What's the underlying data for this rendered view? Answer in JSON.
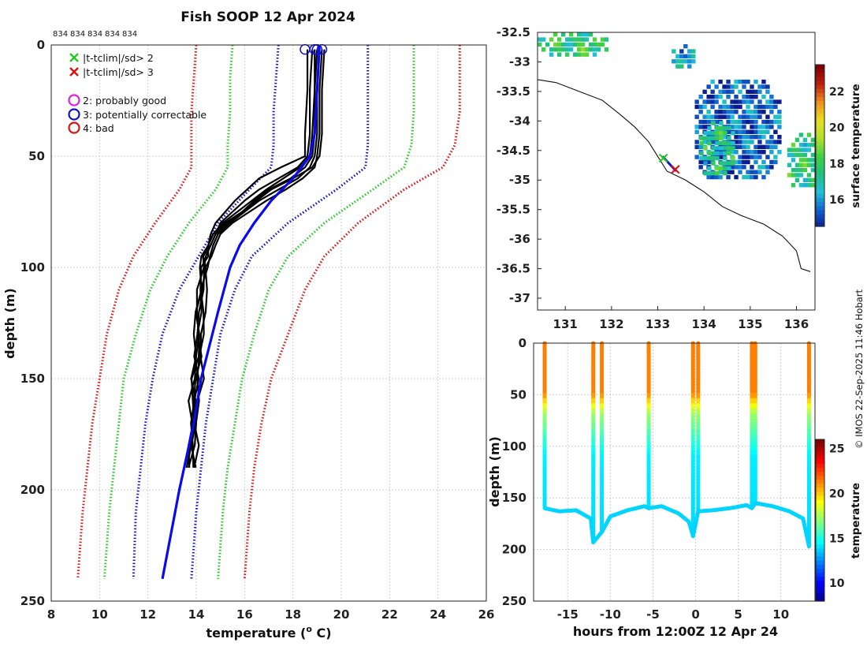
{
  "title": "Fish SOOP 12 Apr 2024",
  "profile_count_labels": [
    "834",
    "834",
    "834",
    "834",
    "834"
  ],
  "side_credit": "© IMOS 22-Sep-2025 11:46 Hobart",
  "chart_data": [
    {
      "type": "line",
      "name": "temperature-depth-profiles",
      "xlabel": "temperature (",
      "xlabel_sup": "o",
      "xlabel_end": " C)",
      "ylabel": "depth (m)",
      "xlim": [
        8,
        26
      ],
      "ylim": [
        250,
        0
      ],
      "xticks": [
        8,
        10,
        12,
        14,
        16,
        18,
        20,
        22,
        24,
        26
      ],
      "yticks": [
        0,
        50,
        100,
        150,
        200,
        250
      ],
      "legend": {
        "flags": [
          {
            "label": "|t-tclim|/sd> 2",
            "color": "#22cc22",
            "marker": "x"
          },
          {
            "label": "|t-tclim|/sd> 3",
            "color": "#dd1111",
            "marker": "x"
          }
        ],
        "qc": [
          {
            "label": "2: probably good",
            "color": "#dd22dd",
            "marker": "o"
          },
          {
            "label": "3: potentially correctable",
            "color": "#1111cc",
            "marker": "o"
          },
          {
            "label": "4: bad",
            "color": "#dd1111",
            "marker": "o"
          }
        ]
      },
      "climatology_depths": [
        0,
        15,
        30,
        45,
        55,
        65,
        80,
        95,
        110,
        130,
        150,
        170,
        190,
        210,
        240
      ],
      "climatology_series": [
        {
          "name": "clim -3sd",
          "color": "#dd1111",
          "style": "dotted",
          "values": [
            14.0,
            13.9,
            13.8,
            13.8,
            13.8,
            13.3,
            12.3,
            11.4,
            10.8,
            10.3,
            10.0,
            9.7,
            9.5,
            9.3,
            9.1
          ]
        },
        {
          "name": "clim -2sd",
          "color": "#22cc22",
          "style": "dotted",
          "values": [
            15.5,
            15.4,
            15.4,
            15.3,
            15.3,
            14.8,
            13.7,
            12.8,
            12.1,
            11.5,
            11.0,
            10.8,
            10.6,
            10.4,
            10.2
          ]
        },
        {
          "name": "clim -1sd",
          "color": "#1111cc",
          "style": "dotted",
          "values": [
            17.4,
            17.3,
            17.2,
            17.2,
            17.1,
            16.2,
            14.9,
            14.1,
            13.3,
            12.6,
            12.2,
            11.9,
            11.7,
            11.5,
            11.4
          ]
        },
        {
          "name": "clim +1sd",
          "color": "#1111cc",
          "style": "dotted",
          "values": [
            21.1,
            21.1,
            21.1,
            21.1,
            21.0,
            19.8,
            17.8,
            16.3,
            15.6,
            15.0,
            14.7,
            14.4,
            14.2,
            14.0,
            13.8
          ]
        },
        {
          "name": "clim +2sd",
          "color": "#22cc22",
          "style": "dotted",
          "values": [
            23.0,
            23.0,
            23.0,
            22.9,
            22.6,
            21.3,
            19.3,
            17.8,
            17.0,
            16.4,
            15.9,
            15.6,
            15.3,
            15.1,
            14.9
          ]
        },
        {
          "name": "clim +3sd",
          "color": "#dd1111",
          "style": "dotted",
          "values": [
            24.9,
            24.9,
            24.9,
            24.7,
            24.2,
            22.6,
            20.7,
            19.3,
            18.5,
            17.8,
            17.1,
            16.7,
            16.4,
            16.2,
            16.0
          ]
        }
      ],
      "mean_profile": {
        "name": "climatological mean",
        "color": "#0a0aee",
        "depths": [
          0,
          20,
          40,
          50,
          60,
          70,
          80,
          90,
          100,
          120,
          150,
          170,
          200,
          240
        ],
        "values": [
          19.1,
          19.0,
          18.9,
          18.7,
          18.0,
          17.1,
          16.4,
          15.8,
          15.4,
          14.9,
          14.2,
          13.9,
          13.3,
          12.6
        ]
      },
      "observed_depths": [
        2,
        20,
        40,
        50,
        55,
        60,
        65,
        70,
        75,
        80,
        85,
        90,
        95,
        100,
        110,
        120,
        130,
        140,
        150,
        160,
        170,
        180,
        190
      ],
      "observed_profiles": [
        {
          "name": "profile 1",
          "values": [
            18.6,
            18.6,
            18.5,
            18.5,
            17.5,
            16.6,
            16.1,
            15.6,
            15.2,
            14.8,
            14.6,
            14.5,
            14.3,
            14.2,
            14.1,
            14.0,
            14.0,
            13.9,
            13.9,
            13.8,
            13.8,
            13.7,
            13.7
          ]
        },
        {
          "name": "profile 2",
          "values": [
            18.8,
            18.7,
            18.7,
            18.6,
            18.2,
            17.4,
            16.6,
            16.0,
            15.5,
            15.0,
            14.8,
            14.6,
            14.4,
            14.2,
            14.1,
            14.1,
            14.0,
            14.0,
            13.9,
            13.9,
            13.8,
            13.8,
            13.7
          ]
        },
        {
          "name": "profile 3",
          "values": [
            18.9,
            18.9,
            18.8,
            18.7,
            18.3,
            17.6,
            16.9,
            16.3,
            15.7,
            15.1,
            14.7,
            14.5,
            14.4,
            14.3,
            14.2,
            14.1,
            14.1,
            14.0,
            14.0,
            13.9,
            13.9,
            13.8,
            13.8
          ]
        },
        {
          "name": "profile 4",
          "values": [
            19.0,
            18.9,
            18.9,
            18.8,
            18.5,
            17.9,
            17.0,
            16.4,
            15.9,
            15.3,
            14.8,
            14.6,
            14.4,
            14.3,
            14.2,
            14.2,
            14.1,
            14.1,
            14.0,
            14.0,
            13.9,
            13.9,
            13.8
          ]
        },
        {
          "name": "profile 5",
          "values": [
            19.1,
            19.0,
            19.0,
            18.9,
            18.7,
            18.2,
            17.4,
            16.6,
            16.0,
            15.4,
            14.9,
            14.7,
            14.5,
            14.4,
            14.3,
            14.3,
            14.2,
            14.2,
            14.1,
            14.0,
            14.0,
            13.9,
            13.9
          ]
        },
        {
          "name": "profile 6",
          "values": [
            19.2,
            19.1,
            19.1,
            19.0,
            18.9,
            18.4,
            17.7,
            16.9,
            16.2,
            15.5,
            15.0,
            14.8,
            14.6,
            14.5,
            14.4,
            14.3,
            14.3,
            14.2,
            14.2,
            14.1,
            14.0,
            14.0,
            13.9
          ]
        },
        {
          "name": "profile 7",
          "values": [
            19.3,
            19.2,
            19.2,
            19.1,
            18.8,
            18.0,
            17.1,
            16.5,
            15.9,
            15.2,
            14.7,
            14.5,
            14.4,
            14.3,
            14.2,
            14.1,
            14.1,
            14.0,
            13.9,
            13.9,
            13.8,
            13.8,
            13.7
          ]
        }
      ],
      "qc_markers": [
        {
          "temperature": 18.5,
          "depth": 2,
          "flag": "3: potentially correctable"
        },
        {
          "temperature": 18.9,
          "depth": 2,
          "flag": "3: potentially correctable"
        },
        {
          "temperature": 19.0,
          "depth": 2,
          "flag": "3: potentially correctable"
        },
        {
          "temperature": 19.2,
          "depth": 2,
          "flag": "3: potentially correctable"
        }
      ]
    },
    {
      "type": "heatmap",
      "name": "surface-temperature-map",
      "colorbar_label": "surface temperature",
      "xlim": [
        130.4,
        136.4
      ],
      "ylim": [
        -37.2,
        -32.5
      ],
      "xticks": [
        131,
        132,
        133,
        134,
        135,
        136
      ],
      "yticks": [
        -32.5,
        -33,
        -33.5,
        -34,
        -34.5,
        -35,
        -35.5,
        -36,
        -36.5,
        -37
      ],
      "colorbar_range": [
        14.5,
        23.5
      ],
      "colorbar_ticks": [
        16,
        18,
        20,
        22
      ],
      "coastline": [
        [
          130.4,
          -33.3
        ],
        [
          130.8,
          -33.35
        ],
        [
          131.3,
          -33.5
        ],
        [
          131.8,
          -33.65
        ],
        [
          132.2,
          -33.9
        ],
        [
          132.5,
          -34.1
        ],
        [
          132.8,
          -34.35
        ],
        [
          133.0,
          -34.6
        ],
        [
          133.2,
          -34.85
        ],
        [
          133.6,
          -35.0
        ],
        [
          134.0,
          -35.2
        ],
        [
          134.4,
          -35.45
        ],
        [
          134.8,
          -35.6
        ],
        [
          135.3,
          -35.75
        ],
        [
          135.7,
          -35.95
        ],
        [
          136.0,
          -36.2
        ],
        [
          136.1,
          -36.5
        ],
        [
          136.3,
          -36.55
        ]
      ],
      "ship_track": [
        {
          "lon": 133.1,
          "lat": -34.6
        },
        {
          "lon": 133.4,
          "lat": -34.85
        }
      ],
      "track_flags": [
        {
          "lon": 133.12,
          "lat": -34.63,
          "flag": "|t-tclim|/sd> 2"
        },
        {
          "lon": 133.38,
          "lat": -34.82,
          "flag": "|t-tclim|/sd> 3"
        }
      ],
      "sst_patches": [
        {
          "lon": [
            130.4,
            131.9
          ],
          "lat": [
            -32.5,
            -32.85
          ],
          "temperature": 17.8
        },
        {
          "lon": [
            133.8,
            135.6
          ],
          "lat": [
            -33.3,
            -35.0
          ],
          "temperature": 15.5
        },
        {
          "lon": [
            133.9,
            134.6
          ],
          "lat": [
            -34.0,
            -34.9
          ],
          "temperature": 17.5
        },
        {
          "lon": [
            133.3,
            133.8
          ],
          "lat": [
            -32.7,
            -33.1
          ],
          "temperature": 16.3
        },
        {
          "lon": [
            135.8,
            136.4
          ],
          "lat": [
            -34.2,
            -35.1
          ],
          "temperature": 17.6
        }
      ]
    },
    {
      "type": "scatter",
      "name": "time-depth-section",
      "xlabel": "hours from 12:00Z 12 Apr 24",
      "ylabel": "depth (m)",
      "colorbar_label": "temperature",
      "xlim": [
        -19,
        14
      ],
      "ylim": [
        250,
        0
      ],
      "xticks": [
        -15,
        -10,
        -5,
        0,
        5,
        10
      ],
      "yticks": [
        0,
        50,
        100,
        150,
        200,
        250
      ],
      "colorbar_range": [
        8,
        26
      ],
      "colorbar_ticks": [
        10,
        15,
        20,
        25
      ],
      "casts": [
        {
          "hour": -17.7,
          "max_depth": 160
        },
        {
          "hour": -12.0,
          "max_depth": 193
        },
        {
          "hour": -11.0,
          "max_depth": 183
        },
        {
          "hour": -5.5,
          "max_depth": 160
        },
        {
          "hour": -0.3,
          "max_depth": 187
        },
        {
          "hour": 0.3,
          "max_depth": 163
        },
        {
          "hour": 6.6,
          "max_depth": 160
        },
        {
          "hour": 7.0,
          "max_depth": 155
        },
        {
          "hour": 13.3,
          "max_depth": 197
        }
      ],
      "bottom_trace": [
        [
          -17.7,
          160
        ],
        [
          -16,
          163
        ],
        [
          -14,
          162
        ],
        [
          -12.3,
          170
        ],
        [
          -12.0,
          193
        ],
        [
          -11.0,
          183
        ],
        [
          -10,
          168
        ],
        [
          -8,
          162
        ],
        [
          -6,
          158
        ],
        [
          -5.5,
          160
        ],
        [
          -4,
          158
        ],
        [
          -2,
          165
        ],
        [
          -0.8,
          173
        ],
        [
          -0.3,
          187
        ],
        [
          0.3,
          163
        ],
        [
          2,
          162
        ],
        [
          4,
          160
        ],
        [
          6,
          157
        ],
        [
          6.6,
          160
        ],
        [
          7.0,
          155
        ],
        [
          9,
          158
        ],
        [
          11,
          163
        ],
        [
          12.6,
          170
        ],
        [
          13.3,
          197
        ]
      ],
      "surface_temperature": 21.5,
      "thermocline_depth": 70,
      "deep_temperature": 14.0
    }
  ]
}
